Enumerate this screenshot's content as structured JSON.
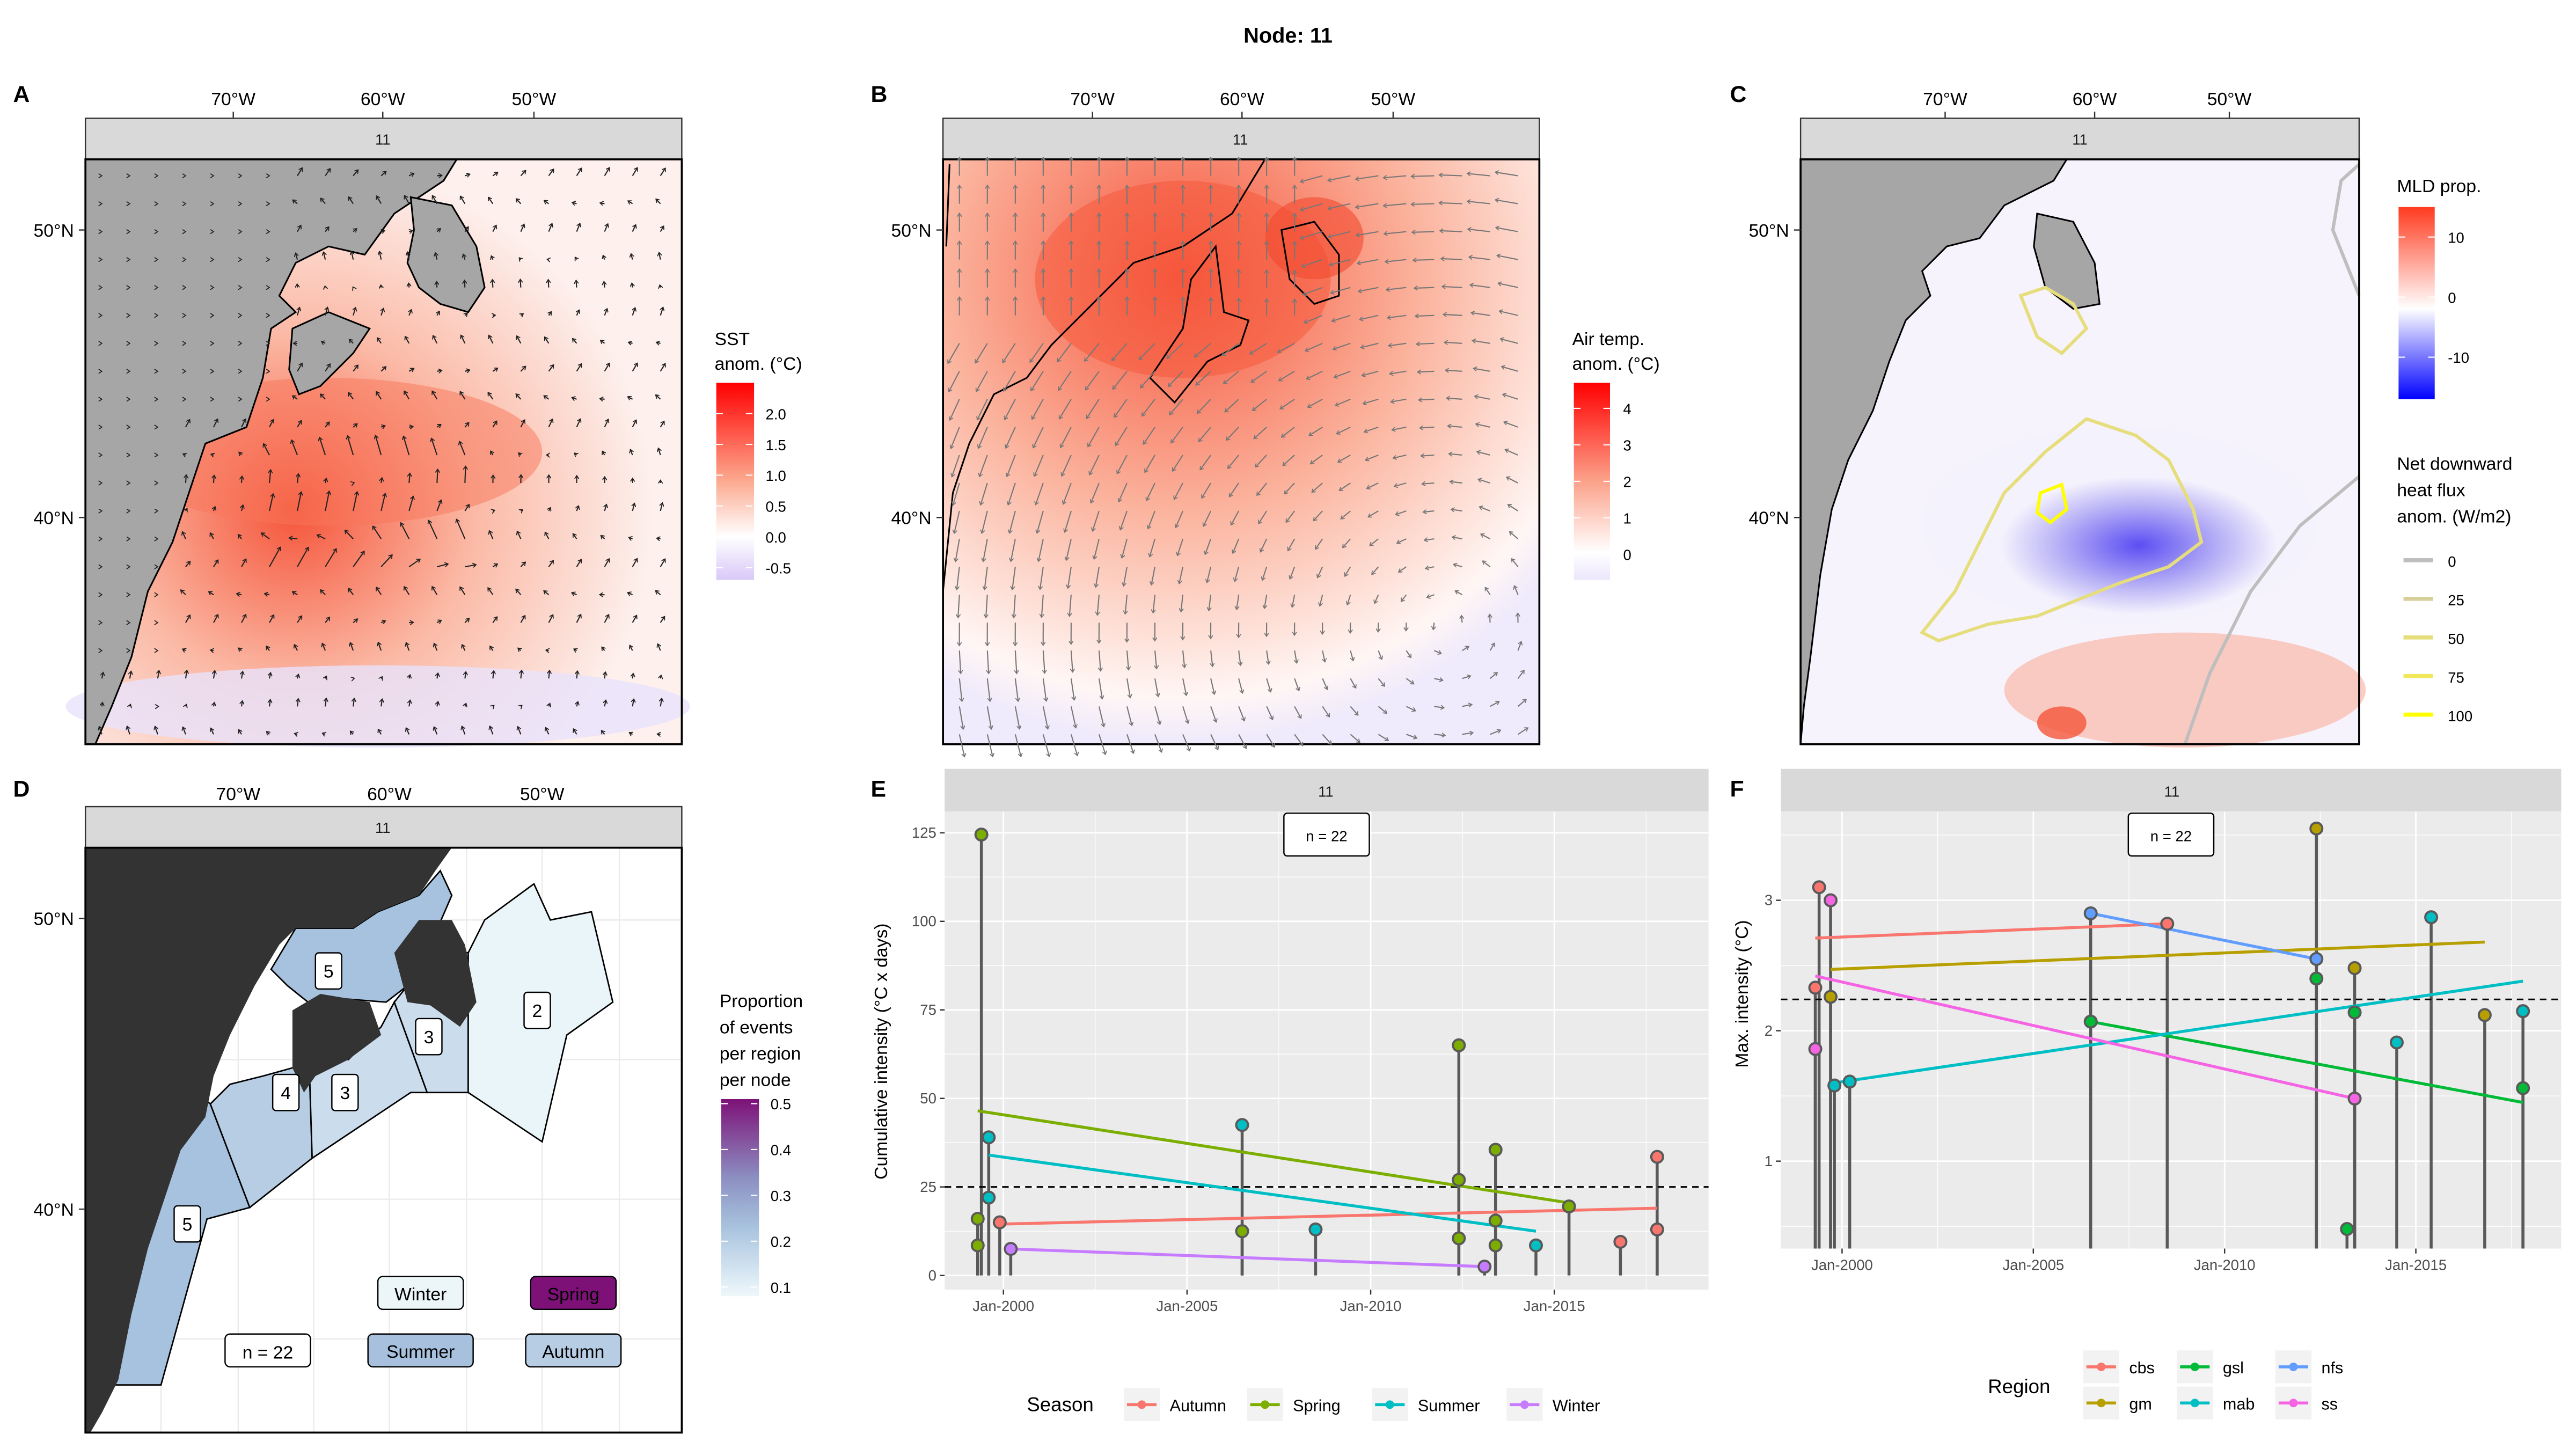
{
  "figure_title": "Node: 11",
  "chart_data": [
    {
      "panel": "A",
      "type": "heatmap",
      "title": "",
      "facet_strip": "11",
      "x_ticks": [
        "70°W",
        "60°W",
        "50°W"
      ],
      "y_ticks": [
        "50°N",
        "40°N"
      ],
      "legend": {
        "title_lines": [
          "SST",
          "anom. (°C)"
        ],
        "ticks": [
          "2.0",
          "1.5",
          "1.0",
          "0.5",
          "0.0",
          "-0.5"
        ],
        "range": [
          -0.7,
          2.5
        ],
        "colors": {
          "low": "#d8c8f8",
          "mid": "#ffffff",
          "high": "#ff0000"
        }
      },
      "overlay": "surface current vectors (black arrows)"
    },
    {
      "panel": "B",
      "type": "heatmap",
      "facet_strip": "11",
      "x_ticks": [
        "70°W",
        "60°W",
        "50°W"
      ],
      "y_ticks": [
        "50°N",
        "40°N"
      ],
      "legend": {
        "title_lines": [
          "Air temp.",
          "anom. (°C)"
        ],
        "ticks": [
          "4",
          "3",
          "2",
          "1",
          "0"
        ],
        "range": [
          -0.7,
          4.7
        ],
        "colors": {
          "low": "#ece6fb",
          "mid": "#ffffff",
          "high": "#ff0000"
        }
      },
      "overlay": "wind vectors (grey arrows)"
    },
    {
      "panel": "C",
      "type": "heatmap",
      "facet_strip": "11",
      "x_ticks": [
        "70°W",
        "60°W",
        "50°W"
      ],
      "y_ticks": [
        "50°N",
        "40°N"
      ],
      "legend": {
        "title_lines": [
          "MLD prop."
        ],
        "ticks": [
          "10",
          "0",
          "-10"
        ],
        "range": [
          -17,
          15
        ],
        "colors": {
          "low": "#0000ff",
          "mid": "#ffffff",
          "high": "#ff3b1f"
        }
      },
      "contour_legend": {
        "title_lines": [
          "Net downward",
          "heat flux",
          "anom. (W/m2)"
        ],
        "levels": [
          {
            "label": "0",
            "color": "#bebebe"
          },
          {
            "label": "25",
            "color": "#d6cf9a"
          },
          {
            "label": "50",
            "color": "#e6dd7c"
          },
          {
            "label": "75",
            "color": "#f0e85a"
          },
          {
            "label": "100",
            "color": "#ffff00"
          }
        ]
      }
    },
    {
      "panel": "D",
      "type": "heatmap",
      "facet_strip": "11",
      "x_ticks": [
        "70°W",
        "60°W",
        "50°W"
      ],
      "y_ticks": [
        "50°N",
        "40°N"
      ],
      "regions": [
        {
          "id": "gsl",
          "count": "5",
          "proportion": 0.23
        },
        {
          "id": "gm",
          "count": "4",
          "proportion": 0.18
        },
        {
          "id": "ss",
          "count": "3",
          "proportion": 0.14
        },
        {
          "id": "cbs",
          "count": "3",
          "proportion": 0.14
        },
        {
          "id": "nfs",
          "count": "2",
          "proportion": 0.09
        },
        {
          "id": "mab",
          "count": "5",
          "proportion": 0.23
        }
      ],
      "seasons": [
        {
          "label": "Winter",
          "proportion": 0.09,
          "color": "#ecf6f9"
        },
        {
          "label": "Spring",
          "proportion": 0.5,
          "color": "#7d1177"
        },
        {
          "label": "Summer",
          "proportion": 0.23,
          "color": "#a7c0dd"
        },
        {
          "label": "Autumn",
          "proportion": 0.18,
          "color": "#b7cde4"
        }
      ],
      "n_label": "n = 22",
      "legend": {
        "title_lines": [
          "Proportion",
          "of events",
          "per region",
          "per node"
        ],
        "ticks": [
          "0.5",
          "0.4",
          "0.3",
          "0.2",
          "0.1"
        ],
        "range": [
          0.08,
          0.51
        ],
        "colors": {
          "low": "#eef8fb",
          "mid": "#9ebad9",
          "high": "#7d1177"
        }
      }
    },
    {
      "panel": "E",
      "type": "scatter",
      "facet_strip": "11",
      "n_label": "n = 22",
      "xlabel": "",
      "ylabel": "Cumulative intensity (°C x days)",
      "x_ticks": [
        "Jan-2000",
        "Jan-2005",
        "Jan-2010",
        "Jan-2015"
      ],
      "x_tick_values": [
        2000,
        2005,
        2010,
        2015
      ],
      "xlim": [
        1998.4,
        2019.2
      ],
      "y_ticks": [
        "0",
        "25",
        "50",
        "75",
        "100",
        "125"
      ],
      "y_tick_values": [
        0,
        25,
        50,
        75,
        100,
        125
      ],
      "ylim": [
        -4,
        131
      ],
      "hline": 25,
      "legend_title": "Season",
      "series": [
        {
          "name": "Autumn",
          "color": "#f8766d",
          "points": [
            [
              1999.9,
              15
            ],
            [
              2016.8,
              9.5
            ],
            [
              2017.8,
              13
            ],
            [
              2017.8,
              33.5
            ]
          ],
          "trend": [
            [
              1999.9,
              14.5
            ],
            [
              2017.8,
              19
            ]
          ]
        },
        {
          "name": "Spring",
          "color": "#7cae00",
          "points": [
            [
              1999.3,
              16
            ],
            [
              1999.3,
              8.5
            ],
            [
              1999.4,
              124.5
            ],
            [
              2006.5,
              12.5
            ],
            [
              2012.4,
              65
            ],
            [
              2012.4,
              27
            ],
            [
              2012.4,
              10.5
            ],
            [
              2013.4,
              35.5
            ],
            [
              2013.4,
              15.5
            ],
            [
              2013.4,
              8.5
            ],
            [
              2015.4,
              19.5
            ]
          ],
          "trend": [
            [
              1999.3,
              46.5
            ],
            [
              2015.4,
              20.5
            ]
          ]
        },
        {
          "name": "Summer",
          "color": "#00bfc4",
          "points": [
            [
              1999.6,
              39
            ],
            [
              1999.6,
              22
            ],
            [
              2006.5,
              42.5
            ],
            [
              2008.5,
              13
            ],
            [
              2014.5,
              8.5
            ]
          ],
          "trend": [
            [
              1999.6,
              34
            ],
            [
              2014.5,
              12.5
            ]
          ]
        },
        {
          "name": "Winter",
          "color": "#c77cff",
          "points": [
            [
              2000.2,
              7.5
            ],
            [
              2013.1,
              2.5
            ]
          ],
          "trend": [
            [
              2000.2,
              7.5
            ],
            [
              2013.1,
              2.5
            ]
          ]
        }
      ]
    },
    {
      "panel": "F",
      "type": "scatter",
      "facet_strip": "11",
      "n_label": "n = 22",
      "xlabel": "",
      "ylabel": "Max. intensity (°C)",
      "x_ticks": [
        "Jan-2000",
        "Jan-2005",
        "Jan-2010",
        "Jan-2015"
      ],
      "x_tick_values": [
        2000,
        2005,
        2010,
        2015
      ],
      "xlim": [
        1998.4,
        2018.8
      ],
      "y_ticks": [
        "1",
        "2",
        "3"
      ],
      "y_tick_values": [
        1,
        2,
        3
      ],
      "ylim": [
        0.33,
        3.68
      ],
      "hline": 2.24,
      "legend_title": "Region",
      "series": [
        {
          "name": "cbs",
          "color": "#f8766d",
          "points": [
            [
              1999.4,
              3.1
            ],
            [
              1999.3,
              2.33
            ],
            [
              2008.5,
              2.82
            ]
          ],
          "trend": [
            [
              1999.3,
              2.71
            ],
            [
              2008.5,
              2.82
            ]
          ]
        },
        {
          "name": "gm",
          "color": "#b79f00",
          "points": [
            [
              1999.7,
              2.26
            ],
            [
              2012.4,
              3.55
            ],
            [
              2013.4,
              2.48
            ],
            [
              2016.8,
              2.12
            ]
          ],
          "trend": [
            [
              1999.7,
              2.47
            ],
            [
              2016.8,
              2.68
            ]
          ]
        },
        {
          "name": "gsl",
          "color": "#00ba38",
          "points": [
            [
              2006.5,
              2.07
            ],
            [
              2012.4,
              2.4
            ],
            [
              2013.2,
              0.48
            ],
            [
              2013.4,
              2.14
            ],
            [
              2017.8,
              1.56
            ]
          ],
          "trend": [
            [
              2006.5,
              2.07
            ],
            [
              2017.8,
              1.45
            ]
          ]
        },
        {
          "name": "mab",
          "color": "#00bfc4",
          "points": [
            [
              1999.8,
              1.58
            ],
            [
              2000.2,
              1.61
            ],
            [
              2014.5,
              1.91
            ],
            [
              2015.4,
              2.87
            ],
            [
              2017.8,
              2.15
            ]
          ],
          "trend": [
            [
              1999.8,
              1.6
            ],
            [
              2017.8,
              2.38
            ]
          ]
        },
        {
          "name": "nfs",
          "color": "#619cff",
          "points": [
            [
              2006.5,
              2.9
            ],
            [
              2012.4,
              2.55
            ]
          ],
          "trend": [
            [
              2006.5,
              2.9
            ],
            [
              2012.4,
              2.55
            ]
          ]
        },
        {
          "name": "ss",
          "color": "#f564e3",
          "points": [
            [
              1999.7,
              3.0
            ],
            [
              1999.3,
              1.86
            ],
            [
              2013.4,
              1.48
            ]
          ],
          "trend": [
            [
              1999.3,
              2.42
            ],
            [
              2013.4,
              1.48
            ]
          ]
        }
      ]
    }
  ]
}
